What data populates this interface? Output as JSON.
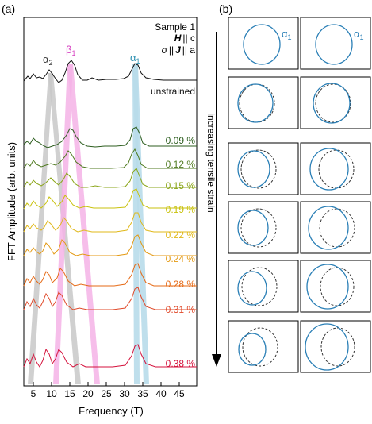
{
  "panel_a": {
    "label": "(a)",
    "xlabel": "Frequency (T)",
    "ylabel": "FFT Amplitude (arb. units)",
    "x_ticks": [
      "5",
      "10",
      "15",
      "20",
      "25",
      "30",
      "35",
      "40",
      "45"
    ],
    "legend": {
      "sample": "Sample 1",
      "field": "H",
      "field_rel": "|| c",
      "sigma": "σ",
      "sigma_rel": "||",
      "current": "J",
      "current_rel": "|| a"
    },
    "peak_labels": [
      {
        "text": "α",
        "sub": "2",
        "color": "#333333"
      },
      {
        "text": "β",
        "sub": "1",
        "color": "#d63fc0"
      },
      {
        "text": "α",
        "sub": "1",
        "color": "#2a8fb0"
      }
    ],
    "traces": [
      {
        "label": "unstrained",
        "color": "#111111"
      },
      {
        "label": "0.09 %",
        "color": "#2d5e1f"
      },
      {
        "label": "0.12 %",
        "color": "#4f7a1f"
      },
      {
        "label": "0.15 %",
        "color": "#8aa518"
      },
      {
        "label": "0.19 %",
        "color": "#c9c20e"
      },
      {
        "label": "0.22 %",
        "color": "#e0b81a"
      },
      {
        "label": "0.24 %",
        "color": "#e49a14"
      },
      {
        "label": "0.28 %",
        "color": "#e66a16"
      },
      {
        "label": "0.31 %",
        "color": "#e04a2a"
      },
      {
        "label": "0.38 %",
        "color": "#d4123c"
      }
    ]
  },
  "panel_b": {
    "label": "(b)",
    "strain_label": "increasing tensile strain",
    "alpha_label": "α",
    "alpha_sub": "1",
    "solid_color": "#2a7fb6",
    "dashed_color": "#333333"
  }
}
